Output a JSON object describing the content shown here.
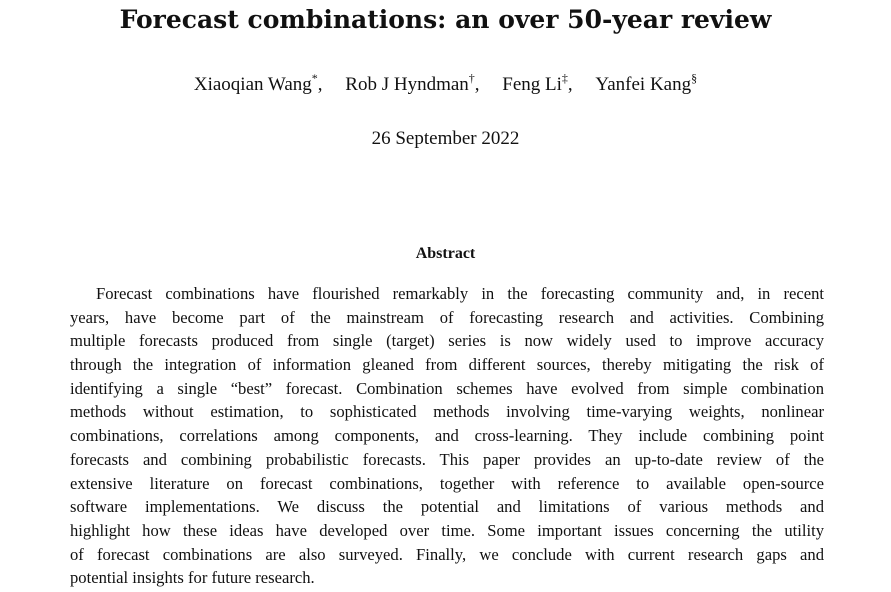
{
  "paper": {
    "title": "Forecast combinations: an over 50-year review",
    "authors": [
      {
        "name": "Xiaoqian Wang",
        "mark": "*",
        "sep": ","
      },
      {
        "name": "Rob J Hyndman",
        "mark": "†",
        "sep": ","
      },
      {
        "name": "Feng Li",
        "mark": "‡",
        "sep": ","
      },
      {
        "name": "Yanfei Kang",
        "mark": "§",
        "sep": ""
      }
    ],
    "date": "26 September 2022",
    "abstract_heading": "Abstract",
    "abstract_lines": [
      "Forecast combinations have flourished remarkably in the forecasting community and, in recent",
      "years, have become part of the mainstream of forecasting research and activities.  Combining",
      "multiple forecasts produced from single (target) series is now widely used to improve accuracy",
      "through the integration of information gleaned from different sources, thereby mitigating the risk of",
      "identifying a single “best” forecast. Combination schemes have evolved from simple combination",
      "methods without estimation, to sophisticated methods involving time-varying weights, nonlinear",
      "combinations, correlations among components, and cross-learning. They include combining point",
      "forecasts and combining probabilistic forecasts. This paper provides an up-to-date review of the",
      "extensive literature on forecast combinations, together with reference to available open-source",
      "software implementations.  We discuss the potential and limitations of various methods and",
      "highlight how these ideas have developed over time. Some important issues concerning the utility",
      "of forecast combinations are also surveyed. Finally, we conclude with current research gaps and",
      "potential insights for future research."
    ]
  }
}
